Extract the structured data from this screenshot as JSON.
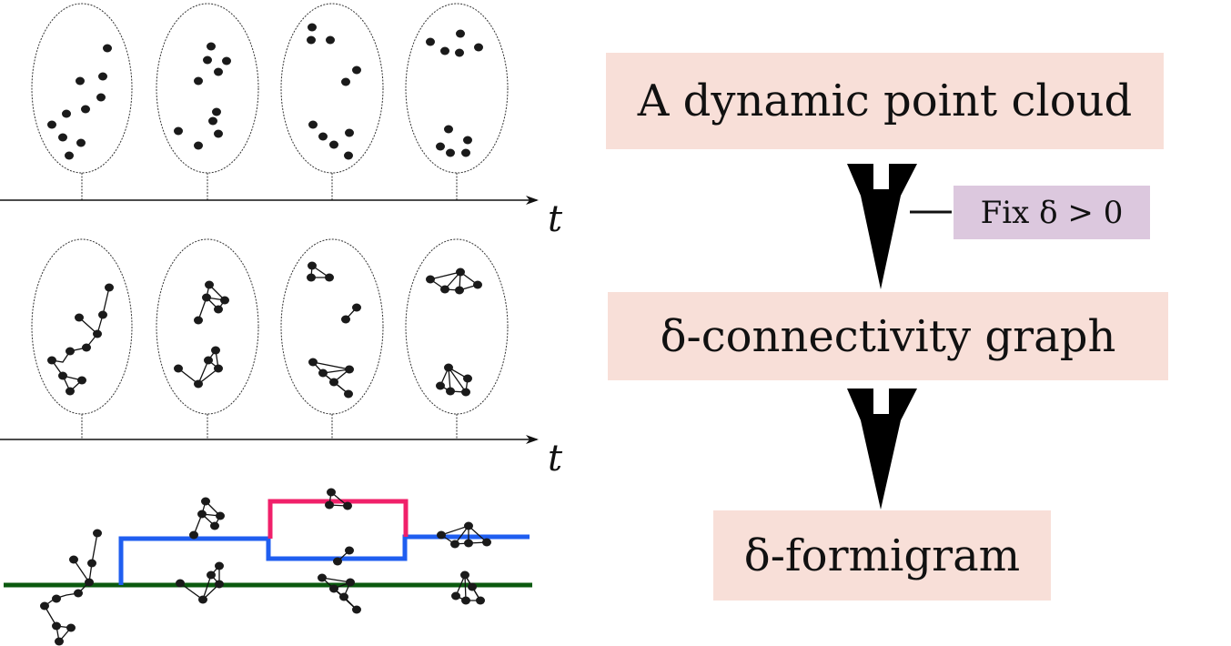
{
  "axis_labels": {
    "top": "t",
    "middle": "t"
  },
  "flow": {
    "step1": "A dynamic point cloud",
    "step2": "δ-connectivity graph",
    "step3": "δ-formigram",
    "parameter": "Fix δ > 0"
  },
  "colors": {
    "box": "#f8dfd8",
    "parameter_box": "#dcc8de",
    "green_branch": "#0b5a0f",
    "blue_branch": "#1f5ef0",
    "pink_branch": "#f0206a",
    "points": "#1a1a1a"
  }
}
